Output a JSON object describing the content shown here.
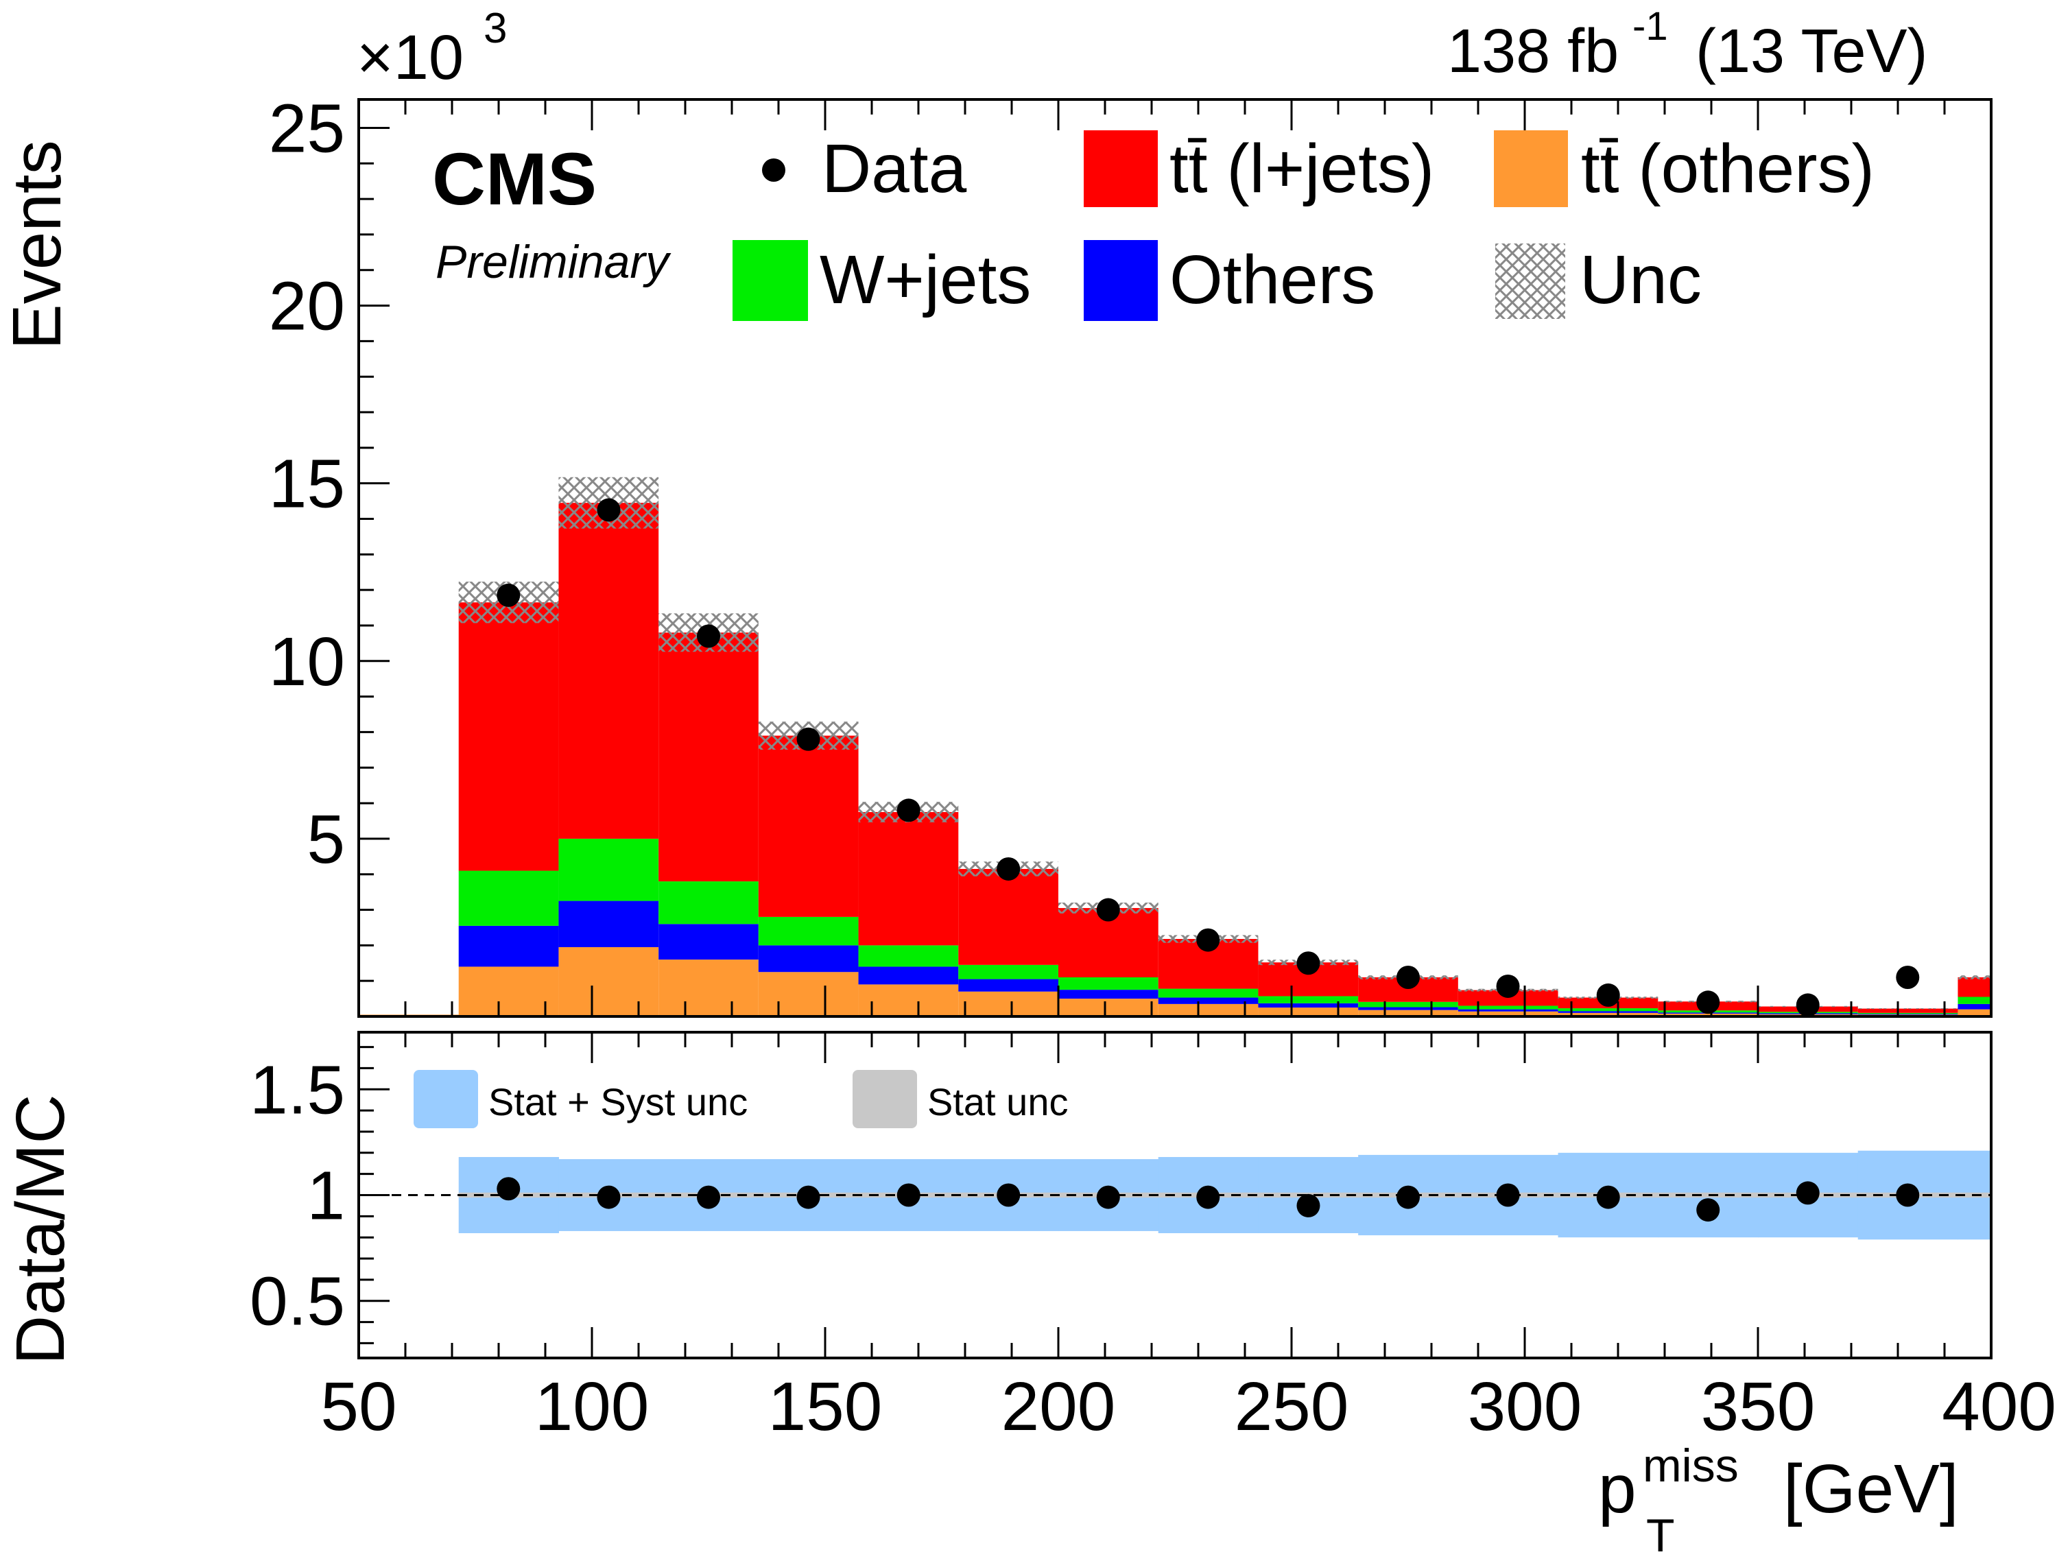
{
  "header": {
    "exponent_base": "×10",
    "exponent_power": "3",
    "lumi_value": "138 fb",
    "lumi_power": "-1",
    "lumi_energy": "(13 TeV)",
    "experiment": "CMS",
    "status": "Preliminary"
  },
  "colors": {
    "ttbar_ljets": "#ff0000",
    "ttbar_others": "#ff9933",
    "wjets": "#00ee00",
    "others": "#0000ff",
    "unc_hatch": "#888888",
    "ratio_stat_syst": "#99ccff",
    "ratio_stat": "#c8c8c8",
    "data": "#000000"
  },
  "legend": {
    "items": [
      {
        "label": "Data",
        "icon": "data-marker-icon"
      },
      {
        "label": "tt̄ (l+jets)",
        "icon": "red-fill-swatch"
      },
      {
        "label": "tt̄ (others)",
        "icon": "orange-fill-swatch"
      },
      {
        "label": "W+jets",
        "icon": "green-fill-swatch"
      },
      {
        "label": "Others",
        "icon": "blue-fill-swatch"
      },
      {
        "label": "Unc",
        "icon": "hatched-swatch"
      }
    ]
  },
  "ratio_legend": {
    "items": [
      {
        "label": "Stat + Syst unc",
        "icon": "lightblue-fill-swatch"
      },
      {
        "label": "Stat unc",
        "icon": "gray-fill-swatch"
      }
    ]
  },
  "chart_data": {
    "type": "bar",
    "subtype": "stacked-histogram",
    "x_unit_note": "bins of 21.43 GeV from 50 to 400",
    "xlim": [
      50,
      400
    ],
    "xlabel_main": "p",
    "xlabel_sub": "T",
    "xlabel_sup": "miss",
    "xlabel_unit": "[GeV]",
    "xticks": [
      "50",
      "100",
      "150",
      "200",
      "250",
      "300",
      "350",
      "400"
    ],
    "xtick_values": [
      50,
      100,
      150,
      200,
      250,
      300,
      350,
      400
    ],
    "top": {
      "ylabel": "Events",
      "ylim": [
        0,
        25.8
      ],
      "yscale_factor": 1000,
      "yticks": [
        "5",
        "10",
        "15",
        "20",
        "25"
      ],
      "ytick_values": [
        5,
        10,
        15,
        20,
        25
      ],
      "bin_edges": [
        50,
        71.43,
        92.86,
        114.29,
        135.71,
        157.14,
        178.57,
        200,
        221.43,
        242.86,
        264.29,
        285.71,
        307.14,
        328.57,
        350,
        371.43,
        392.86,
        400
      ],
      "series": [
        {
          "name": "tt̄ (others)",
          "values": [
            0.05,
            1.4,
            1.95,
            1.6,
            1.25,
            0.9,
            0.7,
            0.5,
            0.35,
            0.25,
            0.18,
            0.14,
            0.1,
            0.08,
            0.06,
            0.05,
            0.2
          ]
        },
        {
          "name": "Others",
          "values": [
            0.0,
            1.15,
            1.3,
            1.0,
            0.75,
            0.5,
            0.35,
            0.25,
            0.18,
            0.12,
            0.08,
            0.06,
            0.05,
            0.03,
            0.03,
            0.02,
            0.15
          ]
        },
        {
          "name": "W+jets",
          "values": [
            0.0,
            1.55,
            1.75,
            1.2,
            0.8,
            0.6,
            0.4,
            0.35,
            0.25,
            0.2,
            0.15,
            0.1,
            0.08,
            0.06,
            0.04,
            0.03,
            0.2
          ]
        },
        {
          "name": "tt̄ (l+jets)",
          "values": [
            0.0,
            7.55,
            9.45,
            7.0,
            5.1,
            3.75,
            2.7,
            1.95,
            1.4,
            0.95,
            0.69,
            0.44,
            0.3,
            0.25,
            0.15,
            0.12,
            0.55
          ]
        }
      ],
      "unc_fraction": 0.05,
      "data": {
        "x": [
          82.1,
          103.6,
          125.0,
          146.4,
          167.9,
          189.3,
          210.7,
          232.1,
          253.6,
          275.0,
          296.4,
          317.9,
          339.3,
          360.7,
          382.1
        ],
        "y": [
          11.85,
          14.25,
          10.7,
          7.8,
          5.8,
          4.15,
          3.0,
          2.15,
          1.5,
          1.1,
          0.85,
          0.6,
          0.4,
          0.32,
          1.1
        ]
      }
    },
    "ratio": {
      "ylabel": "Data/MC",
      "ylim": [
        0.23,
        1.77
      ],
      "yticks": [
        "0.5",
        "1",
        "1.5"
      ],
      "ytick_values": [
        0.5,
        1,
        1.5
      ],
      "reference_line": 1,
      "band_edges": [
        71.43,
        92.86,
        114.29,
        135.71,
        157.14,
        178.57,
        200,
        221.43,
        242.86,
        264.29,
        285.71,
        307.14,
        328.57,
        350,
        371.43,
        392.86,
        400
      ],
      "band_halfwidth": [
        0.18,
        0.17,
        0.17,
        0.17,
        0.17,
        0.17,
        0.17,
        0.18,
        0.18,
        0.19,
        0.19,
        0.2,
        0.2,
        0.2,
        0.21,
        0.21
      ],
      "data": {
        "x": [
          82.1,
          103.6,
          125.0,
          146.4,
          167.9,
          189.3,
          210.7,
          232.1,
          253.6,
          275.0,
          296.4,
          317.9,
          339.3,
          360.7,
          382.1
        ],
        "y": [
          1.03,
          0.99,
          0.99,
          0.99,
          1.0,
          1.0,
          0.99,
          0.99,
          0.95,
          0.99,
          1.0,
          0.99,
          0.93,
          1.01,
          1.0
        ]
      }
    }
  }
}
